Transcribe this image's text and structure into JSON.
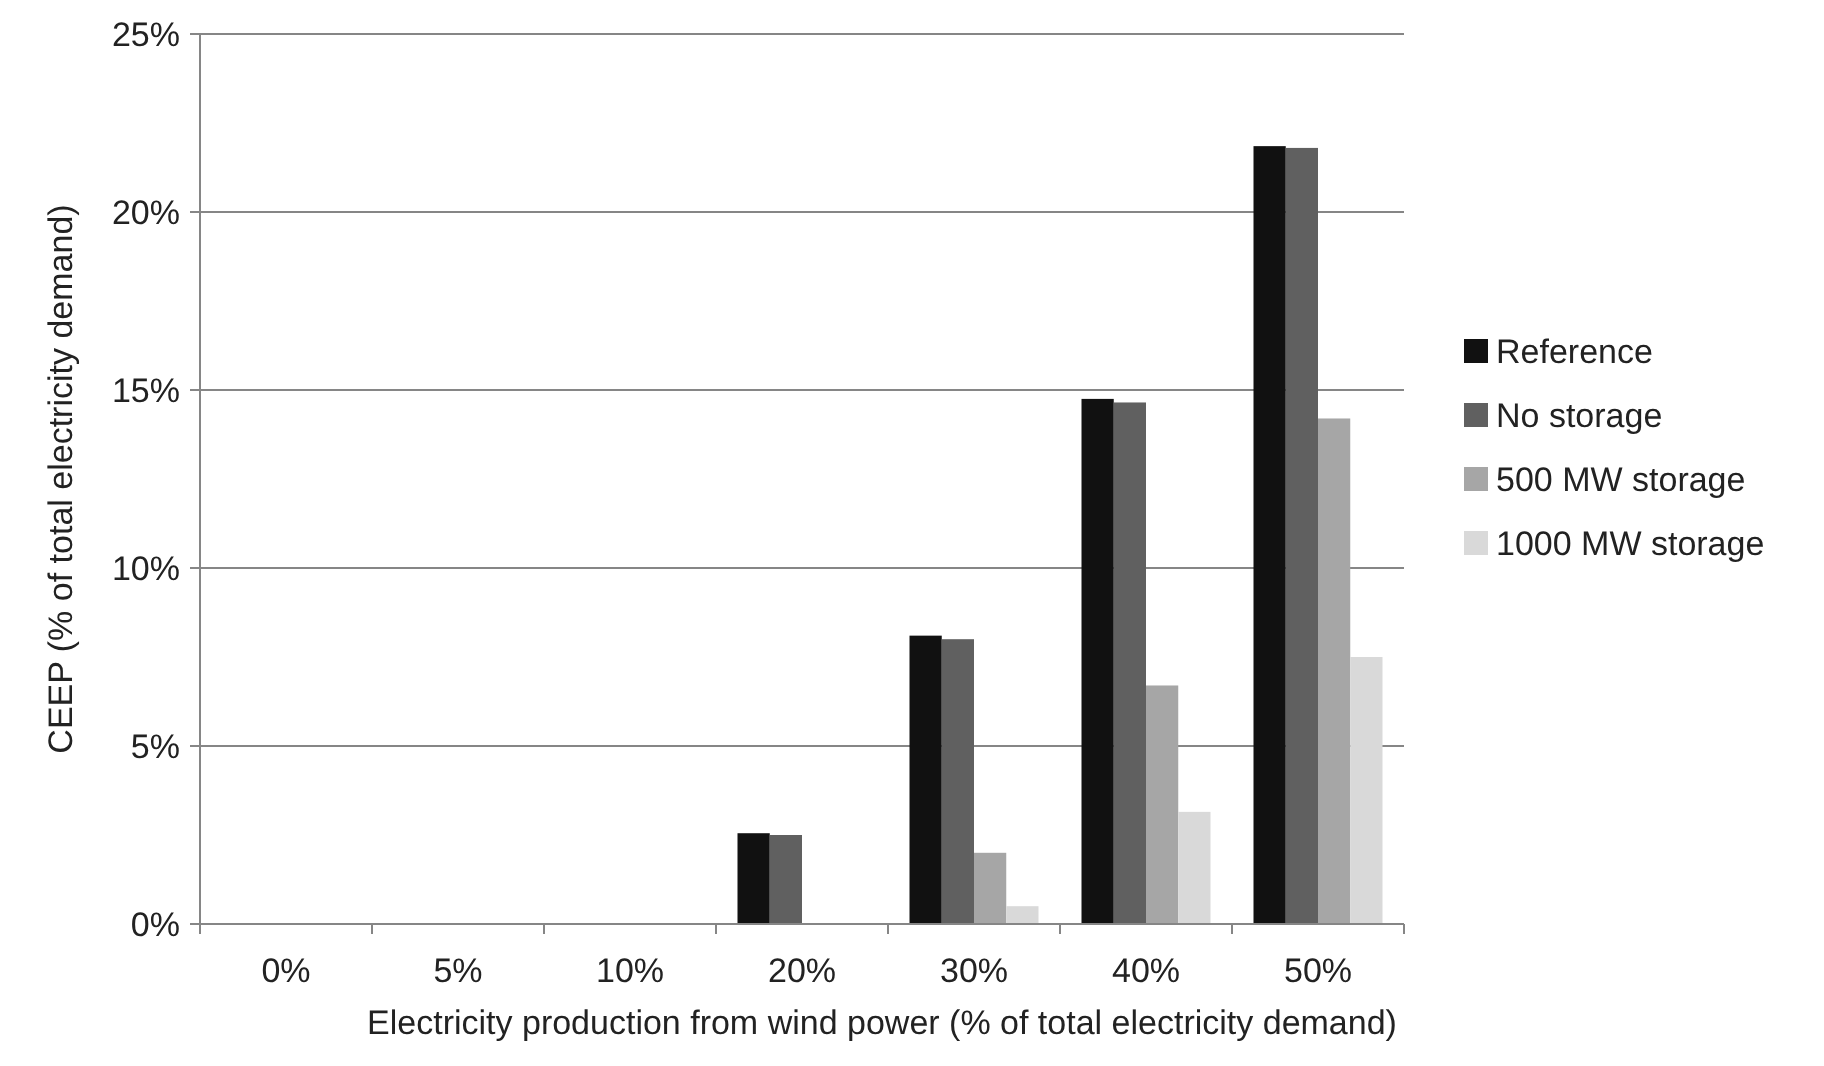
{
  "chart_data": {
    "type": "bar",
    "xlabel": "Electricity production from wind power (% of total electricity demand)",
    "ylabel": "CEEP (% of total electricity demand)",
    "categories": [
      "0%",
      "5%",
      "10%",
      "20%",
      "30%",
      "40%",
      "50%"
    ],
    "series": [
      {
        "name": "Reference",
        "color": "#111111",
        "values": [
          0,
          0,
          0,
          2.55,
          8.1,
          14.75,
          21.85
        ]
      },
      {
        "name": "No storage",
        "color": "#606060",
        "values": [
          0,
          0,
          0,
          2.5,
          8.0,
          14.65,
          21.8
        ]
      },
      {
        "name": "500 MW storage",
        "color": "#a6a6a6",
        "values": [
          0,
          0,
          0,
          0,
          2.0,
          6.7,
          14.2
        ]
      },
      {
        "name": "1000 MW storage",
        "color": "#d9d9d9",
        "values": [
          0,
          0,
          0,
          0,
          0.5,
          3.15,
          7.5
        ]
      }
    ],
    "ylim": [
      0,
      25
    ],
    "yticks": [
      {
        "value": 0,
        "label": "0%"
      },
      {
        "value": 5,
        "label": "5%"
      },
      {
        "value": 10,
        "label": "10%"
      },
      {
        "value": 15,
        "label": "15%"
      },
      {
        "value": 20,
        "label": "20%"
      },
      {
        "value": 25,
        "label": "25%"
      }
    ],
    "grid": "y",
    "legend": "right"
  }
}
